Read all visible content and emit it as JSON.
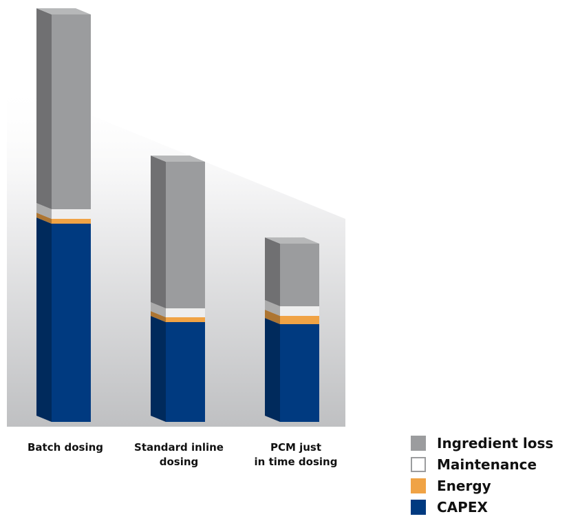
{
  "chart_data": {
    "type": "bar",
    "stacked": true,
    "title": "",
    "xlabel": "",
    "ylabel": "",
    "categories": [
      "Batch dosing",
      "Standard inline\ndosing",
      "PCM just\nin time dosing"
    ],
    "series": [
      {
        "name": "CAPEX",
        "color": "#003a80",
        "values": [
          288,
          145,
          142
        ]
      },
      {
        "name": "Energy",
        "color": "#f0a345",
        "values": [
          7,
          7,
          12
        ]
      },
      {
        "name": "Maintenance",
        "color": "#eeeeee",
        "values": [
          14,
          13,
          14
        ]
      },
      {
        "name": "Ingredient loss",
        "color": "#9b9c9e",
        "values": [
          283,
          213,
          91
        ]
      }
    ],
    "legend_order": [
      "Ingredient loss",
      "Maintenance",
      "Energy",
      "CAPEX"
    ],
    "legend_position": "bottom-right",
    "style": "3d-stacked-columns",
    "grid": false,
    "axes_visible": false
  }
}
